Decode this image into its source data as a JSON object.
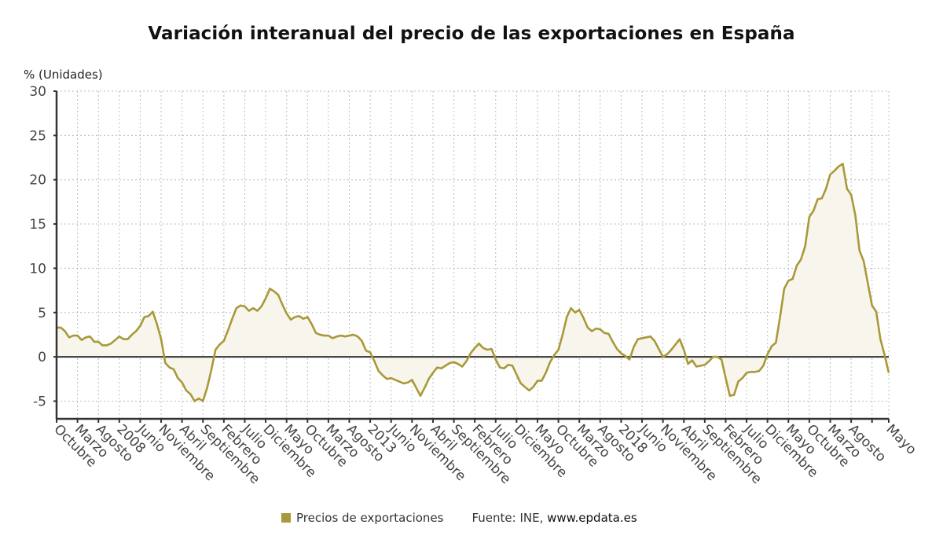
{
  "chart_data": {
    "type": "area",
    "title": "Variación interanual del precio de las exportaciones en España",
    "ylabel": "% (Unidades)",
    "xlabel": "",
    "ylim": [
      -7,
      30
    ],
    "yticks": [
      -5,
      0,
      5,
      10,
      15,
      20,
      25,
      30
    ],
    "grid": true,
    "legend_position": "bottom-center",
    "x_start": "2006-10",
    "x_end": "2023-05",
    "x_frequency": "monthly",
    "xtick_labels": [
      "Octubre",
      "Marzo",
      "Agosto",
      "2008",
      "Junio",
      "Noviembre",
      "Abril",
      "Septiembre",
      "Febrero",
      "Julio",
      "Diciembre",
      "Mayo",
      "Octubre",
      "Marzo",
      "Agosto",
      "2013",
      "Junio",
      "Noviembre",
      "Abril",
      "Septiembre",
      "Febrero",
      "Julio",
      "Diciembre",
      "Mayo",
      "Octubre",
      "Marzo",
      "Agosto",
      "2018",
      "Junio",
      "Noviembre",
      "Abril",
      "Septiembre",
      "Febrero",
      "Julio",
      "Diciembre",
      "Mayo",
      "Octubre",
      "Marzo",
      "Agosto",
      "",
      "Mayo"
    ],
    "xtick_interval_months": 5,
    "colors": {
      "line": "#a8993a",
      "fill": "#f8f5ec",
      "zero_line": "#333333",
      "grid": "#bdbdbd"
    },
    "series": [
      {
        "name": "Precios de exportaciones",
        "values": [
          3.3,
          3.3,
          2.9,
          2.2,
          2.4,
          2.4,
          1.9,
          2.2,
          2.3,
          1.7,
          1.7,
          1.3,
          1.3,
          1.5,
          1.9,
          2.3,
          2.0,
          2.0,
          2.5,
          2.9,
          3.5,
          4.5,
          4.6,
          5.1,
          3.7,
          2.0,
          -0.7,
          -1.2,
          -1.4,
          -2.4,
          -2.9,
          -3.8,
          -4.2,
          -5.0,
          -4.7,
          -5.0,
          -3.5,
          -1.5,
          0.8,
          1.4,
          1.8,
          3.0,
          4.3,
          5.5,
          5.8,
          5.7,
          5.2,
          5.5,
          5.2,
          5.7,
          6.6,
          7.7,
          7.4,
          7.0,
          5.9,
          4.9,
          4.2,
          4.5,
          4.6,
          4.3,
          4.5,
          3.7,
          2.7,
          2.5,
          2.4,
          2.4,
          2.1,
          2.3,
          2.4,
          2.3,
          2.4,
          2.5,
          2.3,
          1.8,
          0.7,
          0.5,
          -0.5,
          -1.6,
          -2.1,
          -2.5,
          -2.4,
          -2.6,
          -2.8,
          -3.0,
          -2.9,
          -2.6,
          -3.5,
          -4.4,
          -3.5,
          -2.5,
          -1.8,
          -1.2,
          -1.3,
          -1.0,
          -0.7,
          -0.6,
          -0.8,
          -1.1,
          -0.5,
          0.4,
          1.0,
          1.5,
          1.0,
          0.8,
          0.9,
          -0.3,
          -1.2,
          -1.3,
          -0.9,
          -1.0,
          -2.0,
          -3.0,
          -3.4,
          -3.8,
          -3.4,
          -2.7,
          -2.7,
          -1.8,
          -0.6,
          0.2,
          0.8,
          2.5,
          4.5,
          5.5,
          5.0,
          5.3,
          4.4,
          3.3,
          2.9,
          3.2,
          3.1,
          2.7,
          2.6,
          1.7,
          0.9,
          0.4,
          0.1,
          -0.3,
          1.1,
          2.0,
          2.1,
          2.2,
          2.3,
          1.8,
          0.9,
          0.0,
          0.3,
          0.8,
          1.4,
          2.0,
          0.8,
          -0.8,
          -0.4,
          -1.1,
          -1.0,
          -0.9,
          -0.5,
          0.0,
          0.0,
          -0.3,
          -2.4,
          -4.4,
          -4.3,
          -2.8,
          -2.4,
          -1.8,
          -1.7,
          -1.7,
          -1.6,
          -1.0,
          0.3,
          1.2,
          1.6,
          4.5,
          7.7,
          8.6,
          8.8,
          10.3,
          11.0,
          12.5,
          15.8,
          16.5,
          17.8,
          17.9,
          19.0,
          20.6,
          21.0,
          21.5,
          21.8,
          19.0,
          18.3,
          16.0,
          12.0,
          10.8,
          8.3,
          5.8,
          5.1,
          2.0,
          0.2,
          -1.8
        ]
      }
    ]
  },
  "legend": {
    "series_label": "Precios de exportaciones",
    "source_prefix": "Fuente: INE, ",
    "source_site": "www.epdata.es"
  }
}
